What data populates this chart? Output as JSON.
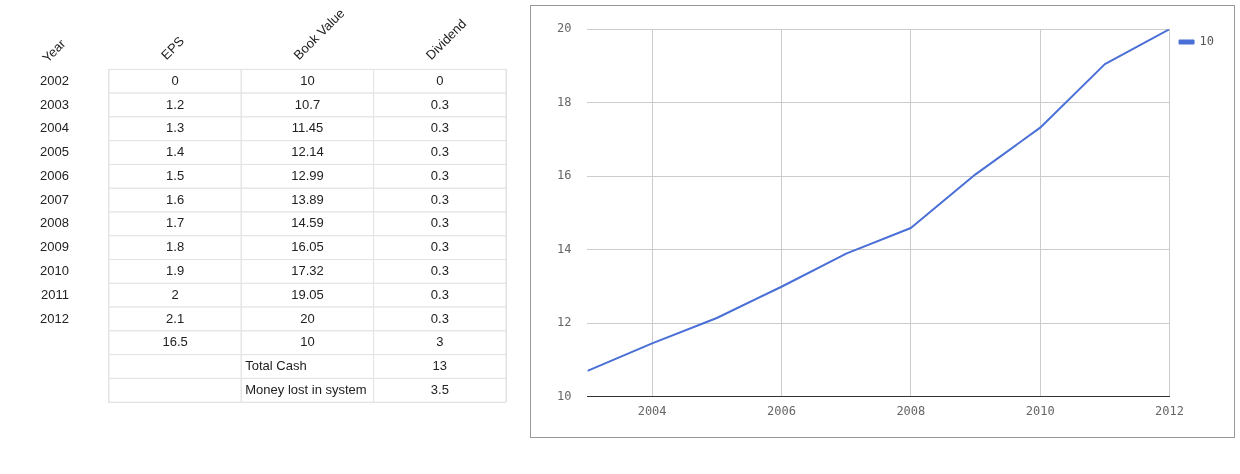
{
  "chart_data": [
    {
      "type": "heatmap",
      "ylabel": "Year",
      "categories": [
        "EPS",
        "Book Value",
        "Dividend"
      ],
      "y_categories": [
        "2002",
        "2003",
        "2004",
        "2005",
        "2006",
        "2007",
        "2008",
        "2009",
        "2010",
        "2011",
        "2012",
        null,
        null,
        null
      ],
      "cells": [
        [
          0,
          10,
          0
        ],
        [
          1.2,
          10.7,
          0.3
        ],
        [
          1.3,
          11.45,
          0.3
        ],
        [
          1.4,
          12.14,
          0.3
        ],
        [
          1.5,
          12.99,
          0.3
        ],
        [
          1.6,
          13.89,
          0.3
        ],
        [
          1.7,
          14.59,
          0.3
        ],
        [
          1.8,
          16.05,
          0.3
        ],
        [
          1.9,
          17.32,
          0.3
        ],
        [
          2,
          19.05,
          0.3
        ],
        [
          2.1,
          20,
          0.3
        ],
        [
          16.5,
          10,
          3
        ],
        [
          null,
          null,
          13
        ],
        [
          null,
          null,
          3.5
        ]
      ],
      "cell_labels": [
        [
          "0",
          "10",
          "0"
        ],
        [
          "1.2",
          "10.7",
          "0.3"
        ],
        [
          "1.3",
          "11.45",
          "0.3"
        ],
        [
          "1.4",
          "12.14",
          "0.3"
        ],
        [
          "1.5",
          "12.99",
          "0.3"
        ],
        [
          "1.6",
          "13.89",
          "0.3"
        ],
        [
          "1.7",
          "14.59",
          "0.3"
        ],
        [
          "1.8",
          "16.05",
          "0.3"
        ],
        [
          "1.9",
          "17.32",
          "0.3"
        ],
        [
          "2",
          "19.05",
          "0.3"
        ],
        [
          "2.1",
          "20",
          "0.3"
        ],
        [
          "16.5",
          "10",
          "3"
        ],
        [
          null,
          "Total Cash",
          "13"
        ],
        [
          null,
          "Money lost in system",
          "3.5"
        ]
      ]
    },
    {
      "type": "line",
      "x": [
        2003,
        2004,
        2005,
        2006,
        2007,
        2008,
        2009,
        2010,
        2011,
        2012
      ],
      "xlim": [
        2003,
        2012
      ],
      "xticks": [
        2004,
        2006,
        2008,
        2010,
        2012
      ],
      "ylim": [
        10,
        20
      ],
      "yticks": [
        10,
        12,
        14,
        16,
        18,
        20
      ],
      "grid": true,
      "legend": "top right",
      "series": [
        {
          "name": "10",
          "color": "#4a6fd6",
          "values": [
            10.7,
            11.45,
            12.14,
            12.99,
            13.89,
            14.59,
            16.05,
            17.32,
            19.05,
            20
          ]
        }
      ]
    }
  ]
}
